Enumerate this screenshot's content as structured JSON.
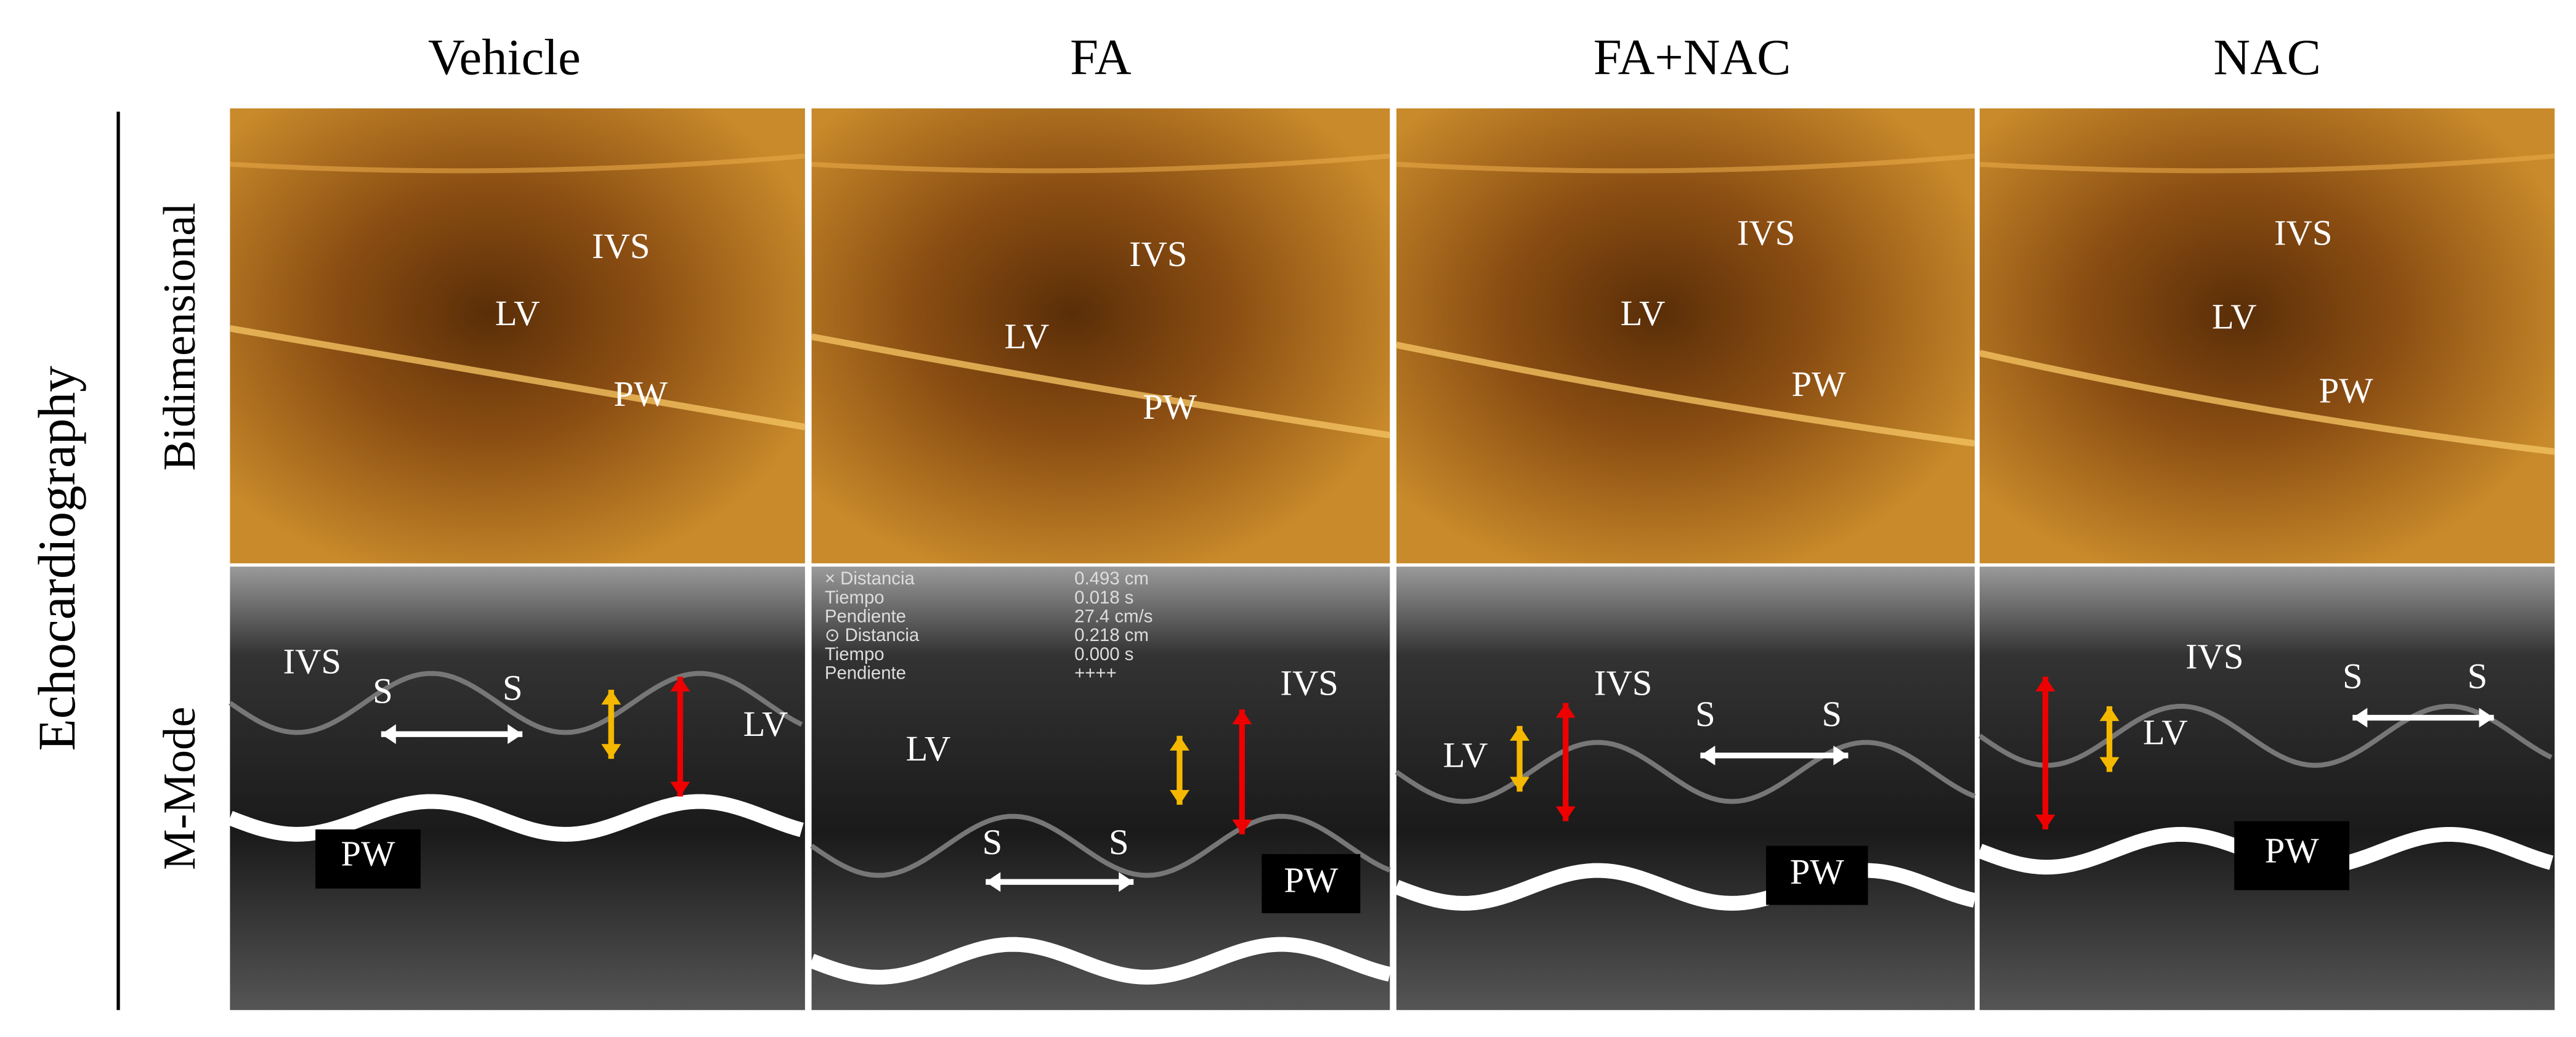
{
  "column_titles": [
    "Vehicle",
    "FA",
    "FA+NAC",
    "NAC"
  ],
  "figure_label": "Echocardiography",
  "row_labels": [
    "Bidimensional",
    "M-Mode"
  ],
  "panels": [
    {
      "bidimensional": [
        "IVS",
        "LV",
        "PW"
      ],
      "m_mode": [
        "IVS",
        "S",
        "S",
        "LV",
        "PW"
      ]
    },
    {
      "bidimensional": [
        "IVS",
        "LV",
        "PW"
      ],
      "m_mode": [
        "IVS",
        "LV",
        "S",
        "S",
        "PW"
      ],
      "overlay": [
        [
          "× Distancia",
          "0.493 cm"
        ],
        [
          "Tiempo",
          "0.018 s"
        ],
        [
          "Pendiente",
          "27.4 cm/s"
        ],
        [
          "⊙ Distancia",
          "0.218 cm"
        ],
        [
          "Tiempo",
          "0.000 s"
        ],
        [
          "Pendiente",
          "++++"
        ]
      ]
    },
    {
      "bidimensional": [
        "IVS",
        "LV",
        "PW"
      ],
      "m_mode": [
        "IVS",
        "LV",
        "S",
        "S",
        "PW"
      ]
    },
    {
      "bidimensional": [
        "IVS",
        "LV",
        "PW"
      ],
      "m_mode": [
        "IVS",
        "LV",
        "S",
        "S",
        "PW"
      ]
    }
  ]
}
